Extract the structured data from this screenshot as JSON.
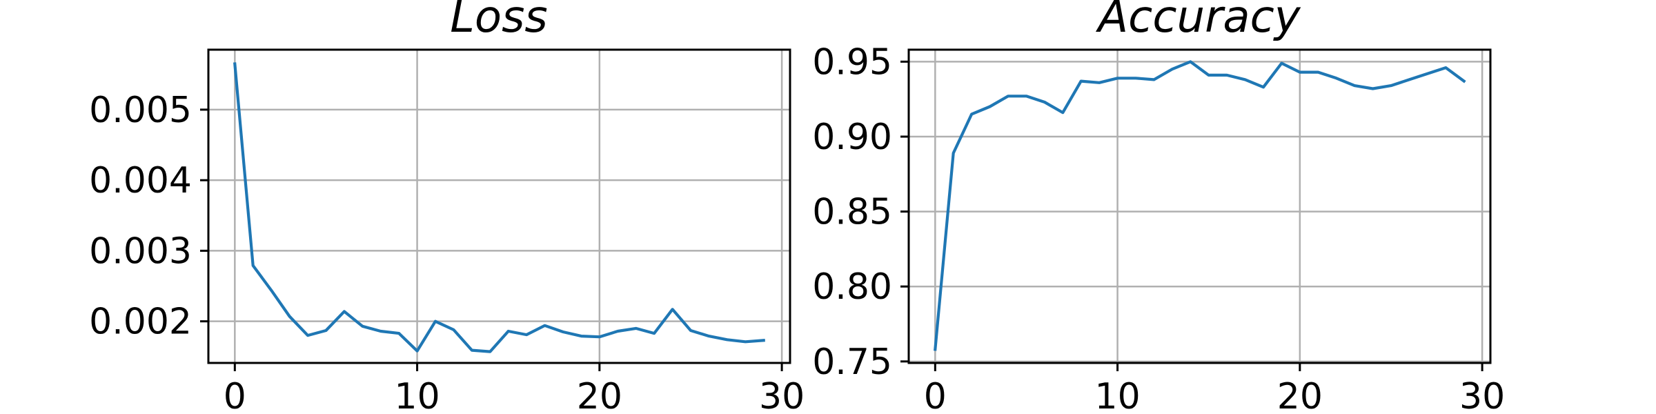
{
  "figure": {
    "line_color": "#1f77b4",
    "grid_color": "#b0b0b0"
  },
  "chart_data": [
    {
      "type": "line",
      "title": "Loss",
      "xlabel": "",
      "ylabel": "",
      "xlim": [
        -1.45,
        30.45
      ],
      "ylim": [
        0.00141,
        0.00585
      ],
      "x_ticks": [
        0,
        10,
        20,
        30
      ],
      "y_ticks": [
        0.002,
        0.003,
        0.004,
        0.005
      ],
      "x_tick_labels": [
        "0",
        "10",
        "20",
        "30"
      ],
      "y_tick_labels": [
        "0.002",
        "0.003",
        "0.004",
        "0.005"
      ],
      "grid": true,
      "series": [
        {
          "x": [
            0,
            1,
            2,
            3,
            4,
            5,
            6,
            7,
            8,
            9,
            10,
            11,
            12,
            13,
            14,
            15,
            16,
            17,
            18,
            19,
            20,
            21,
            22,
            23,
            24,
            25,
            26,
            27,
            28,
            29
          ],
          "values": [
            0.00565,
            0.00279,
            0.00244,
            0.00207,
            0.0018,
            0.00187,
            0.00214,
            0.00193,
            0.00186,
            0.00183,
            0.00158,
            0.002,
            0.00188,
            0.00159,
            0.00157,
            0.00186,
            0.00181,
            0.00194,
            0.00185,
            0.00179,
            0.00178,
            0.00186,
            0.0019,
            0.00183,
            0.00217,
            0.00187,
            0.00179,
            0.00174,
            0.00171,
            0.00173
          ]
        }
      ]
    },
    {
      "type": "line",
      "title": "Accuracy",
      "xlabel": "",
      "ylabel": "",
      "xlim": [
        -1.45,
        30.45
      ],
      "ylim": [
        0.749,
        0.958
      ],
      "x_ticks": [
        0,
        10,
        20,
        30
      ],
      "y_ticks": [
        0.75,
        0.8,
        0.85,
        0.9,
        0.95
      ],
      "x_tick_labels": [
        "0",
        "10",
        "20",
        "30"
      ],
      "y_tick_labels": [
        "0.75",
        "0.80",
        "0.85",
        "0.90",
        "0.95"
      ],
      "grid": true,
      "series": [
        {
          "x": [
            0,
            1,
            2,
            3,
            4,
            5,
            6,
            7,
            8,
            9,
            10,
            11,
            12,
            13,
            14,
            15,
            16,
            17,
            18,
            19,
            20,
            21,
            22,
            23,
            24,
            25,
            26,
            27,
            28,
            29
          ],
          "values": [
            0.758,
            0.889,
            0.915,
            0.92,
            0.927,
            0.927,
            0.923,
            0.916,
            0.937,
            0.936,
            0.939,
            0.939,
            0.938,
            0.945,
            0.95,
            0.941,
            0.941,
            0.938,
            0.933,
            0.949,
            0.943,
            0.943,
            0.939,
            0.934,
            0.932,
            0.934,
            0.938,
            0.942,
            0.946,
            0.937
          ]
        }
      ]
    }
  ]
}
